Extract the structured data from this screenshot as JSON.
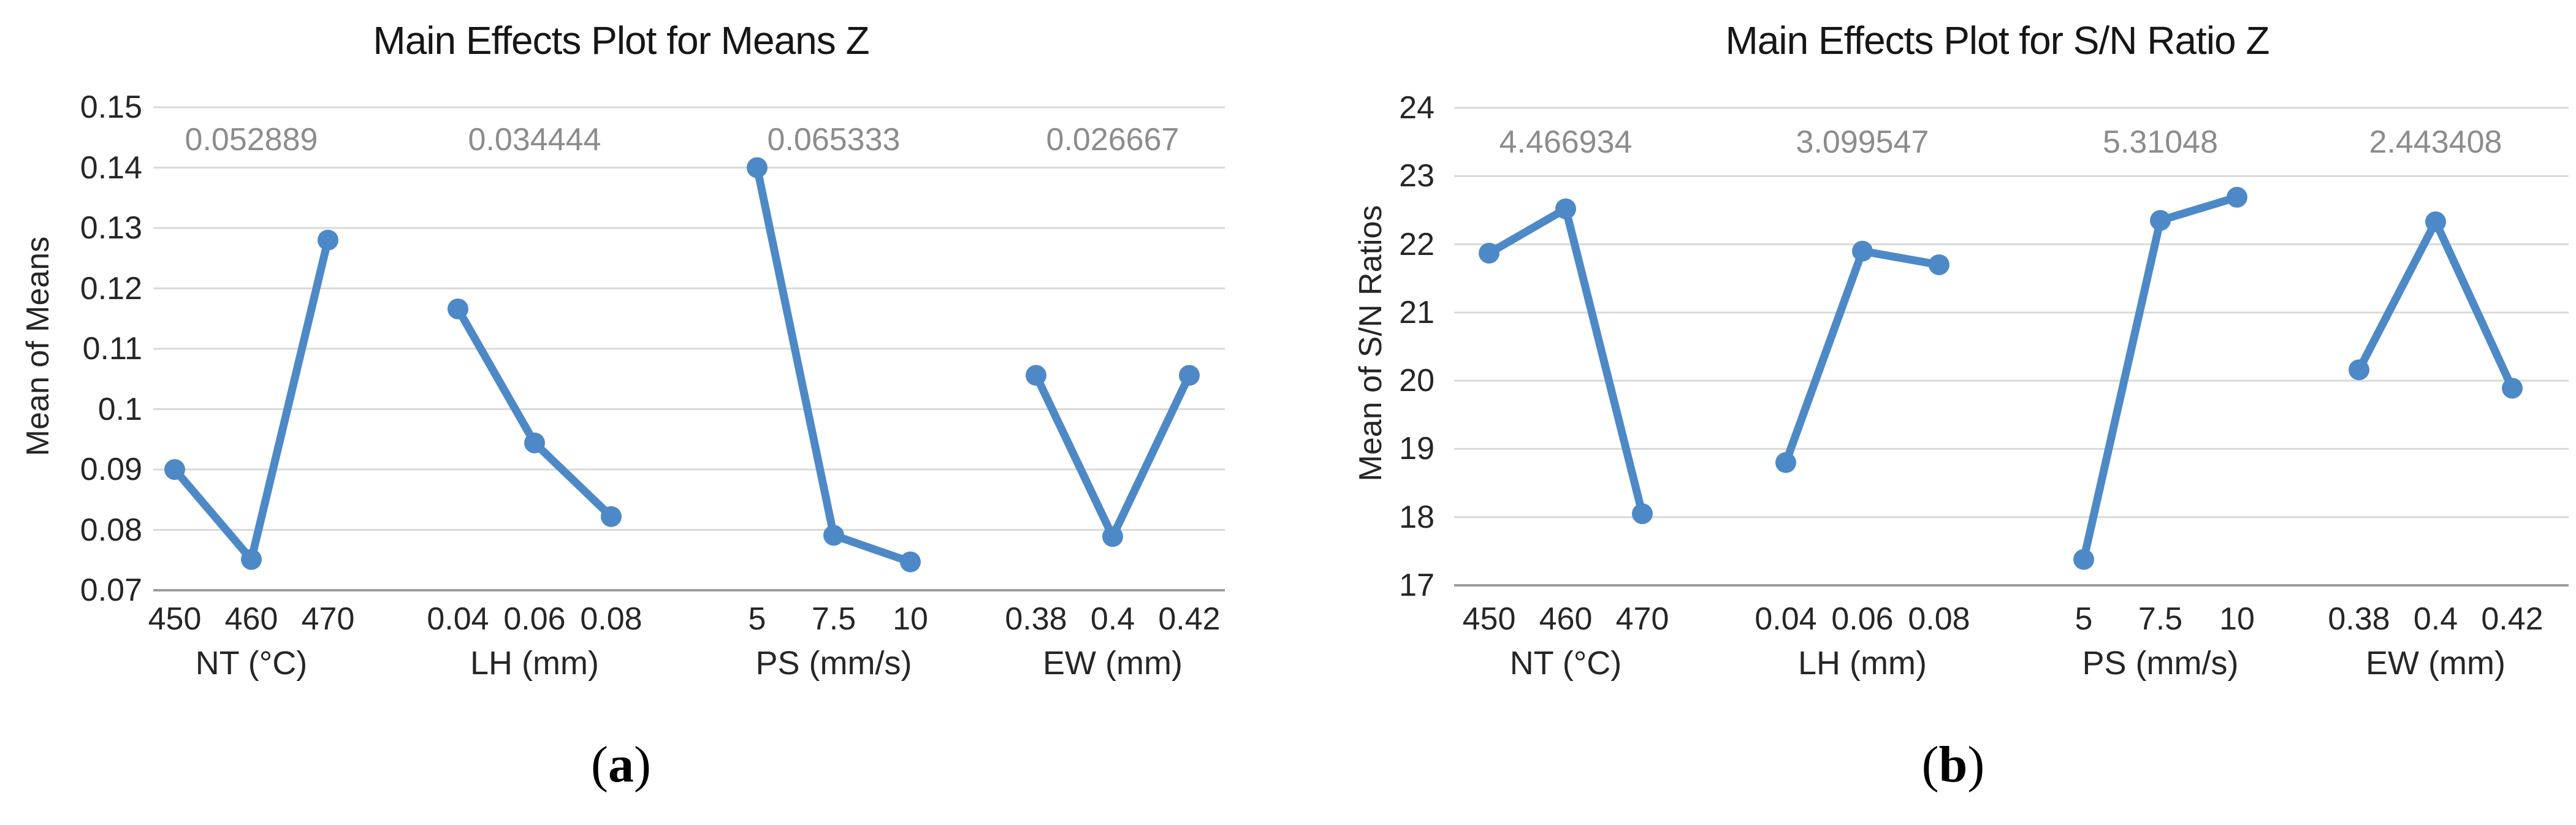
{
  "figure": {
    "background": "#ffffff",
    "grid_color": "#d9d9d9",
    "axis_color": "#9c9c9c",
    "series_color": "#4d89c7",
    "delta_text_color": "#8c8c8c"
  },
  "chart_data": [
    {
      "type": "line",
      "title": "Main Effects Plot for Means Z",
      "ylabel": "Mean of Means",
      "ymin": 0.07,
      "ymax": 0.15,
      "ystep": 0.01,
      "ylim": [
        0.07,
        0.15
      ],
      "grid": true,
      "ytick_labels": [
        "0.15",
        "0.14",
        "0.13",
        "0.12",
        "0.11",
        "0.1",
        "0.09",
        "0.08",
        "0.07"
      ],
      "caption": "(a)",
      "caption_letter": "a",
      "groups": [
        {
          "label": "NT (°C)",
          "delta": "0.052889",
          "ticks": [
            "450",
            "460",
            "470"
          ],
          "values": [
            0.09,
            0.0751,
            0.128
          ]
        },
        {
          "label": "LH (mm)",
          "delta": "0.034444",
          "ticks": [
            "0.04",
            "0.06",
            "0.08"
          ],
          "values": [
            0.1166,
            0.0944,
            0.0822
          ]
        },
        {
          "label": "PS (mm/s)",
          "delta": "0.065333",
          "ticks": [
            "5",
            "7.5",
            "10"
          ],
          "values": [
            0.14,
            0.0791,
            0.0747
          ]
        },
        {
          "label": "EW (mm)",
          "delta": "0.026667",
          "ticks": [
            "0.38",
            "0.4",
            "0.42"
          ],
          "values": [
            0.1056,
            0.0789,
            0.1056
          ]
        }
      ]
    },
    {
      "type": "line",
      "title": "Main Effects Plot for S/N Ratio Z",
      "ylabel": "Mean of S/N Ratios",
      "ymin": 17,
      "ymax": 24,
      "ystep": 1,
      "ylim": [
        17,
        24
      ],
      "grid": true,
      "ytick_labels": [
        "24",
        "23",
        "22",
        "21",
        "20",
        "19",
        "18",
        "17"
      ],
      "caption": "(b)",
      "caption_letter": "b",
      "groups": [
        {
          "label": "NT (°C)",
          "delta": "4.466934",
          "ticks": [
            "450",
            "460",
            "470"
          ],
          "values": [
            21.87,
            22.52,
            18.05
          ]
        },
        {
          "label": "LH (mm)",
          "delta": "3.099547",
          "ticks": [
            "0.04",
            "0.06",
            "0.08"
          ],
          "values": [
            18.8,
            21.9,
            21.7
          ]
        },
        {
          "label": "PS (mm/s)",
          "delta": "5.31048",
          "ticks": [
            "5",
            "7.5",
            "10"
          ],
          "values": [
            17.38,
            22.35,
            22.69
          ]
        },
        {
          "label": "EW (mm)",
          "delta": "2.443408",
          "ticks": [
            "0.38",
            "0.4",
            "0.42"
          ],
          "values": [
            20.16,
            22.33,
            19.89
          ]
        }
      ]
    }
  ]
}
